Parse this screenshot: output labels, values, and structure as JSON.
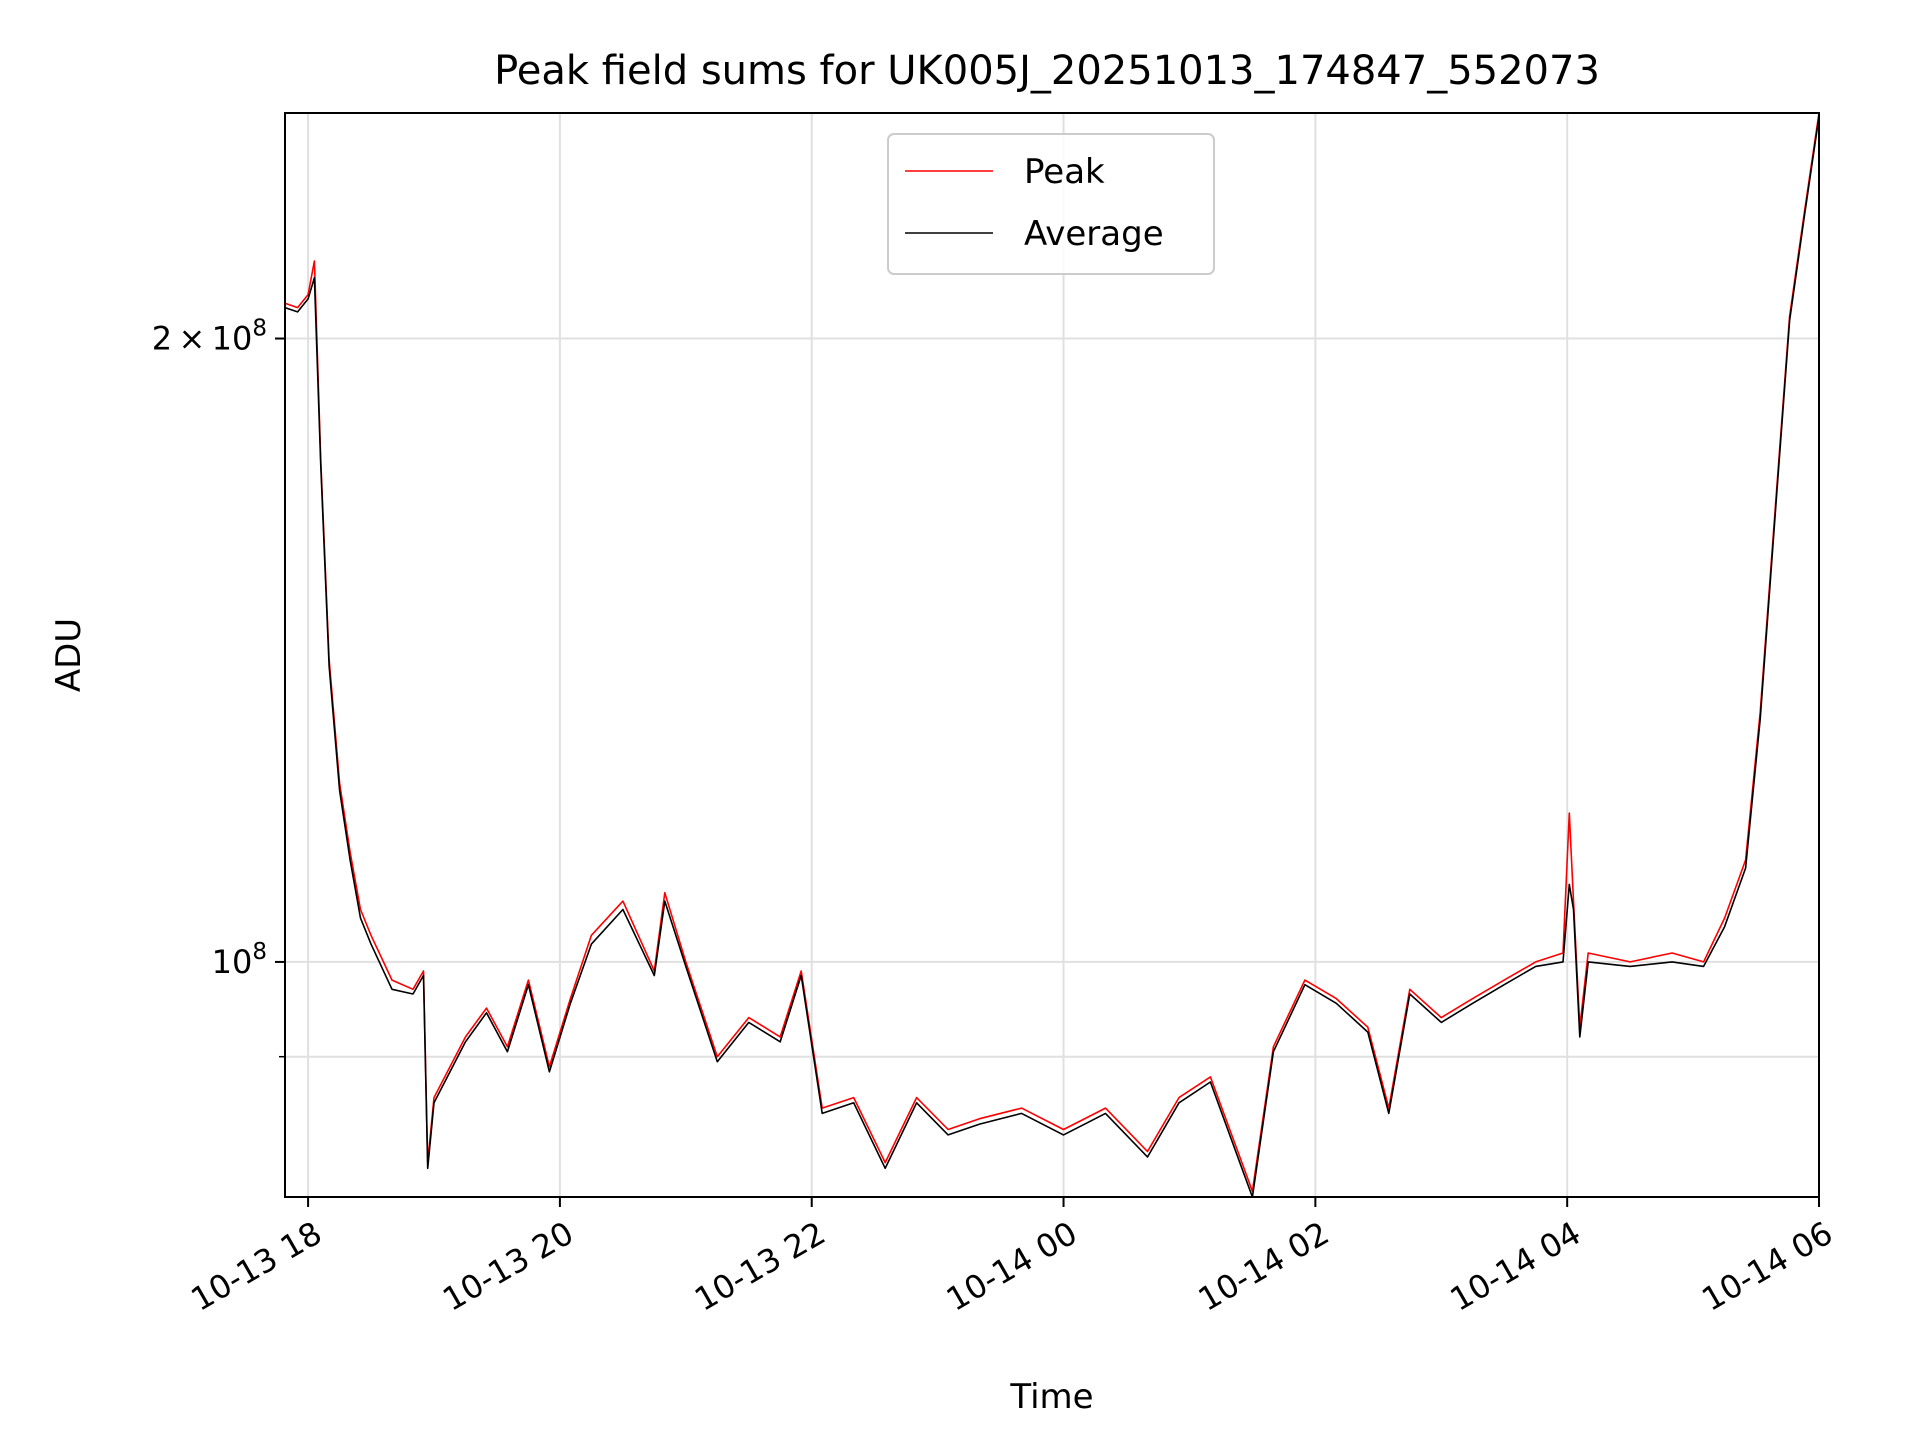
{
  "chart_data": {
    "type": "line",
    "title": "Peak field sums for UK005J_20251013_174847_552073",
    "xlabel": "Time",
    "ylabel": "ADU",
    "y_scale": "log",
    "grid": true,
    "legend_position": "top-center",
    "xlim": [
      "2025-10-13 17:49",
      "2025-10-14 06:00"
    ],
    "ylim": [
      77000000,
      257000000
    ],
    "x_ticks": [
      {
        "t": "2025-10-13 18:00",
        "label": "10-13 18"
      },
      {
        "t": "2025-10-13 20:00",
        "label": "10-13 20"
      },
      {
        "t": "2025-10-13 22:00",
        "label": "10-13 22"
      },
      {
        "t": "2025-10-14 00:00",
        "label": "10-14 00"
      },
      {
        "t": "2025-10-14 02:00",
        "label": "10-14 02"
      },
      {
        "t": "2025-10-14 04:00",
        "label": "10-14 04"
      },
      {
        "t": "2025-10-14 06:00",
        "label": "10-14 06"
      }
    ],
    "y_ticks": [
      {
        "value": 200000000,
        "base": "2",
        "sep": "×",
        "pow_base": "10",
        "exp": "8"
      },
      {
        "value": 100000000,
        "base": "",
        "sep": "",
        "pow_base": "10",
        "exp": "8"
      }
    ],
    "y_minor_ticks": [
      90000000
    ],
    "series": [
      {
        "name": "Peak",
        "color": "#ff0000",
        "points": [
          [
            "2025-10-13 17:49",
            208000000
          ],
          [
            "2025-10-13 17:55",
            207000000
          ],
          [
            "2025-10-13 18:00",
            210000000
          ],
          [
            "2025-10-13 18:03",
            218000000
          ],
          [
            "2025-10-13 18:06",
            175000000
          ],
          [
            "2025-10-13 18:10",
            140000000
          ],
          [
            "2025-10-13 18:15",
            122000000
          ],
          [
            "2025-10-13 18:20",
            113000000
          ],
          [
            "2025-10-13 18:25",
            106000000
          ],
          [
            "2025-10-13 18:30",
            103000000
          ],
          [
            "2025-10-13 18:40",
            98000000
          ],
          [
            "2025-10-13 18:50",
            97000000
          ],
          [
            "2025-10-13 18:55",
            99000000
          ],
          [
            "2025-10-13 18:57",
            80000000
          ],
          [
            "2025-10-13 19:00",
            86000000
          ],
          [
            "2025-10-13 19:15",
            92000000
          ],
          [
            "2025-10-13 19:25",
            95000000
          ],
          [
            "2025-10-13 19:35",
            91000000
          ],
          [
            "2025-10-13 19:45",
            98000000
          ],
          [
            "2025-10-13 19:55",
            89000000
          ],
          [
            "2025-10-13 20:05",
            96000000
          ],
          [
            "2025-10-13 20:15",
            103000000
          ],
          [
            "2025-10-13 20:30",
            107000000
          ],
          [
            "2025-10-13 20:45",
            99000000
          ],
          [
            "2025-10-13 20:50",
            108000000
          ],
          [
            "2025-10-13 21:00",
            100000000
          ],
          [
            "2025-10-13 21:15",
            90000000
          ],
          [
            "2025-10-13 21:30",
            94000000
          ],
          [
            "2025-10-13 21:45",
            92000000
          ],
          [
            "2025-10-13 21:55",
            99000000
          ],
          [
            "2025-10-13 22:05",
            85000000
          ],
          [
            "2025-10-13 22:20",
            86000000
          ],
          [
            "2025-10-13 22:35",
            80000000
          ],
          [
            "2025-10-13 22:50",
            86000000
          ],
          [
            "2025-10-13 23:05",
            83000000
          ],
          [
            "2025-10-13 23:20",
            84000000
          ],
          [
            "2025-10-13 23:40",
            85000000
          ],
          [
            "2025-10-14 00:00",
            83000000
          ],
          [
            "2025-10-14 00:20",
            85000000
          ],
          [
            "2025-10-14 00:40",
            81000000
          ],
          [
            "2025-10-14 00:55",
            86000000
          ],
          [
            "2025-10-14 01:10",
            88000000
          ],
          [
            "2025-10-14 01:25",
            80000000
          ],
          [
            "2025-10-14 01:30",
            77500000
          ],
          [
            "2025-10-14 01:40",
            91000000
          ],
          [
            "2025-10-14 01:55",
            98000000
          ],
          [
            "2025-10-14 02:10",
            96000000
          ],
          [
            "2025-10-14 02:25",
            93000000
          ],
          [
            "2025-10-14 02:35",
            85000000
          ],
          [
            "2025-10-14 02:45",
            97000000
          ],
          [
            "2025-10-14 03:00",
            94000000
          ],
          [
            "2025-10-14 03:15",
            96000000
          ],
          [
            "2025-10-14 03:30",
            98000000
          ],
          [
            "2025-10-14 03:45",
            100000000
          ],
          [
            "2025-10-14 03:58",
            101000000
          ],
          [
            "2025-10-14 04:01",
            118000000
          ],
          [
            "2025-10-14 04:03",
            107000000
          ],
          [
            "2025-10-14 04:06",
            93000000
          ],
          [
            "2025-10-14 04:10",
            101000000
          ],
          [
            "2025-10-14 04:30",
            100000000
          ],
          [
            "2025-10-14 04:50",
            101000000
          ],
          [
            "2025-10-14 05:05",
            100000000
          ],
          [
            "2025-10-14 05:15",
            105000000
          ],
          [
            "2025-10-14 05:25",
            112000000
          ],
          [
            "2025-10-14 05:32",
            132000000
          ],
          [
            "2025-10-14 05:40",
            170000000
          ],
          [
            "2025-10-14 05:46",
            205000000
          ],
          [
            "2025-10-14 05:53",
            230000000
          ],
          [
            "2025-10-14 06:00",
            257000000
          ]
        ]
      },
      {
        "name": "Average",
        "color": "#000000",
        "points": [
          [
            "2025-10-13 17:49",
            207000000
          ],
          [
            "2025-10-13 17:55",
            206000000
          ],
          [
            "2025-10-13 18:00",
            209000000
          ],
          [
            "2025-10-13 18:03",
            214000000
          ],
          [
            "2025-10-13 18:06",
            174000000
          ],
          [
            "2025-10-13 18:10",
            139000000
          ],
          [
            "2025-10-13 18:15",
            121000000
          ],
          [
            "2025-10-13 18:20",
            112000000
          ],
          [
            "2025-10-13 18:25",
            105000000
          ],
          [
            "2025-10-13 18:30",
            102000000
          ],
          [
            "2025-10-13 18:40",
            97000000
          ],
          [
            "2025-10-13 18:50",
            96500000
          ],
          [
            "2025-10-13 18:55",
            98500000
          ],
          [
            "2025-10-13 18:57",
            79500000
          ],
          [
            "2025-10-13 19:00",
            85500000
          ],
          [
            "2025-10-13 19:15",
            91500000
          ],
          [
            "2025-10-13 19:25",
            94500000
          ],
          [
            "2025-10-13 19:35",
            90500000
          ],
          [
            "2025-10-13 19:45",
            97500000
          ],
          [
            "2025-10-13 19:55",
            88500000
          ],
          [
            "2025-10-13 20:05",
            95500000
          ],
          [
            "2025-10-13 20:15",
            102000000
          ],
          [
            "2025-10-13 20:30",
            106000000
          ],
          [
            "2025-10-13 20:45",
            98500000
          ],
          [
            "2025-10-13 20:50",
            107000000
          ],
          [
            "2025-10-13 21:00",
            99500000
          ],
          [
            "2025-10-13 21:15",
            89500000
          ],
          [
            "2025-10-13 21:30",
            93500000
          ],
          [
            "2025-10-13 21:45",
            91500000
          ],
          [
            "2025-10-13 21:55",
            98500000
          ],
          [
            "2025-10-13 22:05",
            84500000
          ],
          [
            "2025-10-13 22:20",
            85500000
          ],
          [
            "2025-10-13 22:35",
            79500000
          ],
          [
            "2025-10-13 22:50",
            85500000
          ],
          [
            "2025-10-13 23:05",
            82500000
          ],
          [
            "2025-10-13 23:20",
            83500000
          ],
          [
            "2025-10-13 23:40",
            84500000
          ],
          [
            "2025-10-14 00:00",
            82500000
          ],
          [
            "2025-10-14 00:20",
            84500000
          ],
          [
            "2025-10-14 00:40",
            80500000
          ],
          [
            "2025-10-14 00:55",
            85500000
          ],
          [
            "2025-10-14 01:10",
            87500000
          ],
          [
            "2025-10-14 01:25",
            79500000
          ],
          [
            "2025-10-14 01:30",
            77000000
          ],
          [
            "2025-10-14 01:40",
            90500000
          ],
          [
            "2025-10-14 01:55",
            97500000
          ],
          [
            "2025-10-14 02:10",
            95500000
          ],
          [
            "2025-10-14 02:25",
            92500000
          ],
          [
            "2025-10-14 02:35",
            84500000
          ],
          [
            "2025-10-14 02:45",
            96500000
          ],
          [
            "2025-10-14 03:00",
            93500000
          ],
          [
            "2025-10-14 03:15",
            95500000
          ],
          [
            "2025-10-14 03:30",
            97500000
          ],
          [
            "2025-10-14 03:45",
            99500000
          ],
          [
            "2025-10-14 03:58",
            100000000
          ],
          [
            "2025-10-14 04:01",
            109000000
          ],
          [
            "2025-10-14 04:03",
            106000000
          ],
          [
            "2025-10-14 04:06",
            92000000
          ],
          [
            "2025-10-14 04:10",
            100000000
          ],
          [
            "2025-10-14 04:30",
            99500000
          ],
          [
            "2025-10-14 04:50",
            100000000
          ],
          [
            "2025-10-14 05:05",
            99500000
          ],
          [
            "2025-10-14 05:15",
            104000000
          ],
          [
            "2025-10-14 05:25",
            111000000
          ],
          [
            "2025-10-14 05:32",
            131000000
          ],
          [
            "2025-10-14 05:40",
            169000000
          ],
          [
            "2025-10-14 05:46",
            204000000
          ],
          [
            "2025-10-14 05:53",
            229000000
          ],
          [
            "2025-10-14 06:00",
            256000000
          ]
        ]
      }
    ]
  }
}
